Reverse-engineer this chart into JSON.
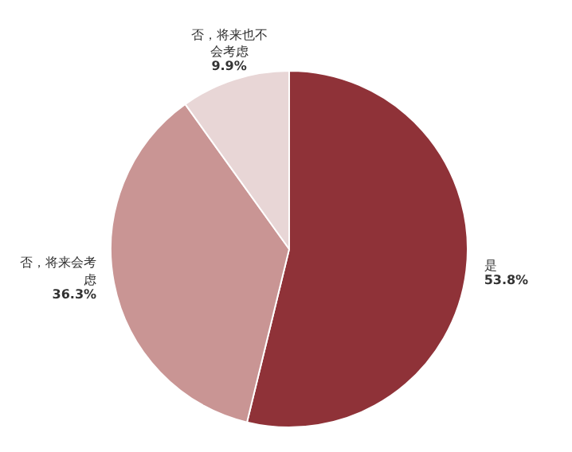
{
  "chart_data": {
    "type": "pie",
    "categories": [
      "是",
      "否，将来会考虑",
      "否，将来也不会考虑"
    ],
    "values": [
      53.8,
      36.3,
      9.9
    ],
    "value_labels": [
      "53.8%",
      "36.3%",
      "9.9%"
    ],
    "colors": [
      "#8f3238",
      "#c99594",
      "#e8d6d6"
    ]
  }
}
